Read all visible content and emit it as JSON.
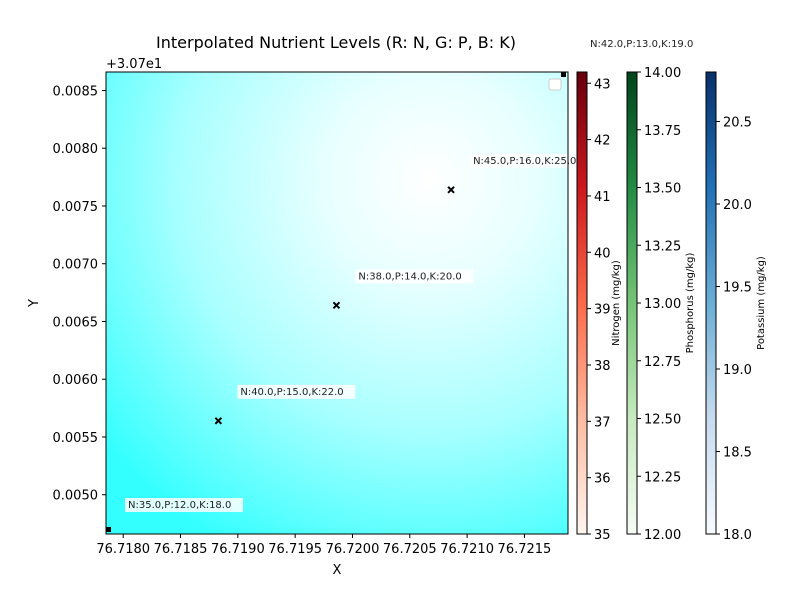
{
  "chart_data": {
    "type": "heatmap",
    "title": "Interpolated Nutrient Levels (R: N, G: P, B: K)",
    "xlabel": "X",
    "ylabel": "Y",
    "x_offset_label": "+3.07e1",
    "xlim": [
      76.71785,
      76.72188
    ],
    "ylim": [
      0.00466,
      0.00866
    ],
    "x_ticks": [
      "76.7180",
      "76.7185",
      "76.7190",
      "76.7195",
      "76.7200",
      "76.7205",
      "76.7210",
      "76.7215"
    ],
    "x_tick_values": [
      76.718,
      76.7185,
      76.719,
      76.7195,
      76.72,
      76.7205,
      76.721,
      76.7215
    ],
    "y_ticks": [
      "0.0050",
      "0.0055",
      "0.0060",
      "0.0065",
      "0.0070",
      "0.0075",
      "0.0080",
      "0.0085"
    ],
    "y_tick_values": [
      0.005,
      0.0055,
      0.006,
      0.0065,
      0.007,
      0.0075,
      0.008,
      0.0085
    ],
    "points": [
      {
        "x": 76.71785,
        "y": 0.00466,
        "label": "N:35.0,P:12.0,K:18.0",
        "marker": "square"
      },
      {
        "x": 76.71883,
        "y": 0.00564,
        "label": "N:40.0,P:15.0,K:22.0",
        "marker": "x"
      },
      {
        "x": 76.71986,
        "y": 0.00664,
        "label": "N:38.0,P:14.0,K:20.0",
        "marker": "x"
      },
      {
        "x": 76.72086,
        "y": 0.00764,
        "label": "N:45.0,P:16.0,K:25.0",
        "marker": "x"
      },
      {
        "x": 76.72188,
        "y": 0.00866,
        "label": "N:42.0,P:13.0,K:19.0",
        "marker": "square"
      }
    ],
    "colorbars": [
      {
        "label": "Nitrogen (mg/kg)",
        "range": [
          35,
          43.2
        ],
        "ticks": [
          "35",
          "36",
          "37",
          "38",
          "39",
          "40",
          "41",
          "42",
          "43"
        ],
        "tick_values": [
          35,
          36,
          37,
          38,
          39,
          40,
          41,
          42,
          43
        ],
        "colors": [
          "#fff5f0",
          "#fcbba1",
          "#fb6a4a",
          "#cb181d",
          "#67000d"
        ]
      },
      {
        "label": "Phosphorus (mg/kg)",
        "range": [
          12,
          14
        ],
        "ticks": [
          "12.00",
          "12.25",
          "12.50",
          "12.75",
          "13.00",
          "13.25",
          "13.50",
          "13.75",
          "14.00"
        ],
        "tick_values": [
          12,
          12.25,
          12.5,
          12.75,
          13,
          13.25,
          13.5,
          13.75,
          14
        ],
        "colors": [
          "#f7fcf5",
          "#c7e9c0",
          "#74c476",
          "#238b45",
          "#00441b"
        ]
      },
      {
        "label": "Potassium (mg/kg)",
        "range": [
          18,
          20.8
        ],
        "ticks": [
          "18.0",
          "18.5",
          "19.0",
          "19.5",
          "20.0",
          "20.5"
        ],
        "tick_values": [
          18,
          18.5,
          19,
          19.5,
          20,
          20.5
        ],
        "colors": [
          "#f7fbff",
          "#c6dbef",
          "#6baed6",
          "#2171b5",
          "#08306b"
        ]
      }
    ],
    "legend": "top-right",
    "grid": false,
    "colors": {
      "field_low": "#33ffff",
      "field_high": "#ffffff"
    }
  }
}
